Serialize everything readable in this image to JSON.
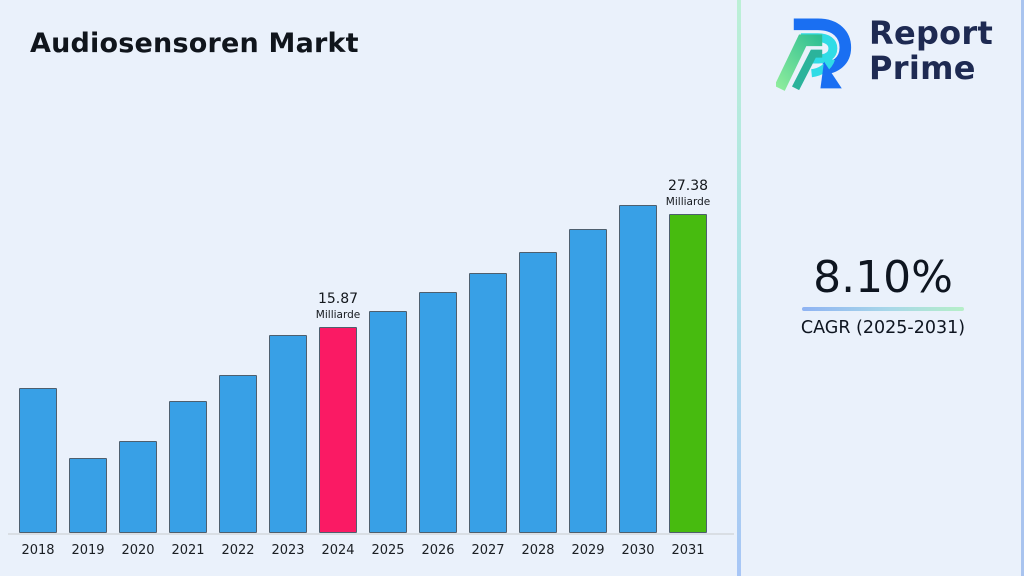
{
  "header": {
    "title": "Audiosensoren Markt"
  },
  "logo": {
    "line1": "Report",
    "line2": "Prime",
    "text_color": "#1E2A52"
  },
  "cagr": {
    "value": "8.10%",
    "label": "CAGR (2025-2031)"
  },
  "chart_data": {
    "type": "bar",
    "title": "Audiosensoren Markt",
    "unit": "Milliarde",
    "categories": [
      "2018",
      "2019",
      "2020",
      "2021",
      "2022",
      "2023",
      "2024",
      "2025",
      "2026",
      "2027",
      "2028",
      "2029",
      "2030",
      "2031"
    ],
    "values": [
      11.15,
      5.8,
      7.1,
      10.15,
      12.2,
      15.3,
      15.87,
      17.16,
      18.55,
      20.05,
      21.68,
      23.43,
      25.33,
      27.38
    ],
    "ylim": [
      0,
      27.38
    ],
    "xlabel": "",
    "ylabel": "",
    "grid": false,
    "legend": false,
    "annotations": [
      {
        "category": "2024",
        "value_label": "15.87",
        "unit_label": "Milliarde"
      },
      {
        "category": "2031",
        "value_label": "27.38",
        "unit_label": "Milliarde"
      }
    ],
    "colors": {
      "default_bar": "#38A0E6",
      "bar_border": "#4E5F6E",
      "highlights": {
        "2024": "#FA1A64",
        "2031": "#47BB0F"
      },
      "background": "#EAF1FB"
    }
  }
}
